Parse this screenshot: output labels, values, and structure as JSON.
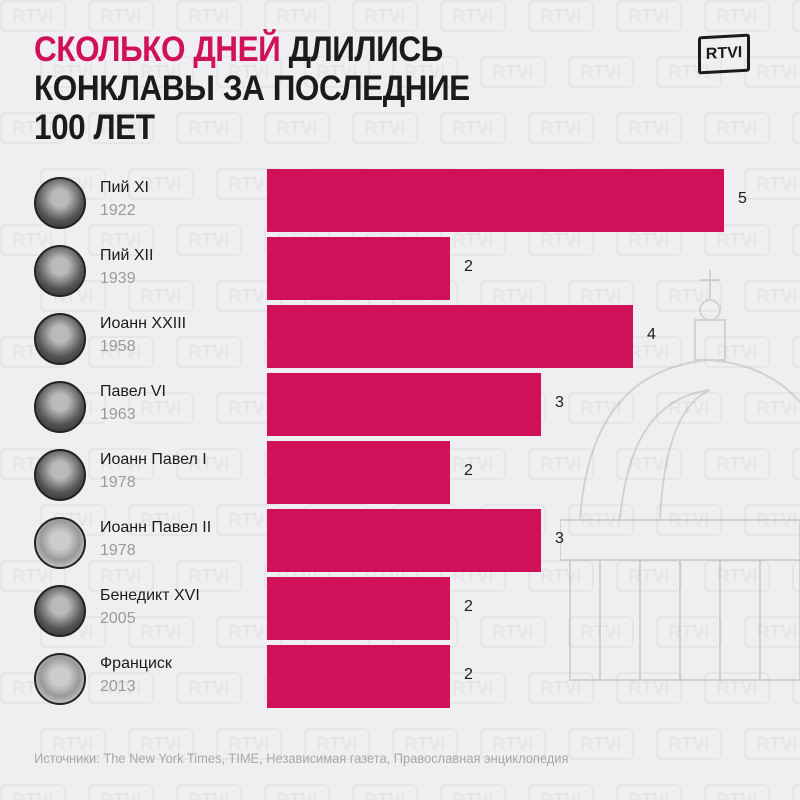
{
  "header": {
    "title_highlight": "СКОЛЬКО ДНЕЙ",
    "title_rest_line1": " ДЛИЛИСЬ",
    "title_line2": "КОНКЛАВЫ ЗА ПОСЛЕДНИЕ",
    "title_line3": "100 ЛЕТ",
    "logo": "RTVI"
  },
  "colors": {
    "accent": "#d1105a",
    "background": "#efeff1",
    "text": "#1b1b1b",
    "muted": "#9a9a9a"
  },
  "rows": [
    {
      "name": "Пий XI",
      "year": "1922",
      "value": "5"
    },
    {
      "name": "Пий XII",
      "year": "1939",
      "value": "2"
    },
    {
      "name": "Иоанн XXIII",
      "year": "1958",
      "value": "4"
    },
    {
      "name": "Павел VI",
      "year": "1963",
      "value": "3"
    },
    {
      "name": "Иоанн Павел I",
      "year": "1978",
      "value": "2"
    },
    {
      "name": "Иоанн Павел II",
      "year": "1978",
      "value": "3"
    },
    {
      "name": "Бенедикт XVI",
      "year": "2005",
      "value": "2"
    },
    {
      "name": "Франциск",
      "year": "2013",
      "value": "2"
    }
  ],
  "footer": {
    "source": "Источники: The New York Times, TIME, Независимая газета, Православная энциклопедия"
  },
  "chart_data": {
    "type": "bar",
    "orientation": "horizontal",
    "title": "Сколько дней длились конклавы за последние 100 лет",
    "categories": [
      "Пий XI (1922)",
      "Пий XII (1939)",
      "Иоанн XXIII (1958)",
      "Павел VI (1963)",
      "Иоанн Павел I (1978)",
      "Иоанн Павел II (1978)",
      "Бенедикт XVI (2005)",
      "Франциск (2013)"
    ],
    "values": [
      5,
      2,
      4,
      3,
      2,
      3,
      2,
      2
    ],
    "xlabel": "",
    "ylabel": "",
    "unit": "дни",
    "grid": false,
    "legend": null,
    "source": "The New York Times, TIME, Независимая газета, Православная энциклопедия"
  }
}
